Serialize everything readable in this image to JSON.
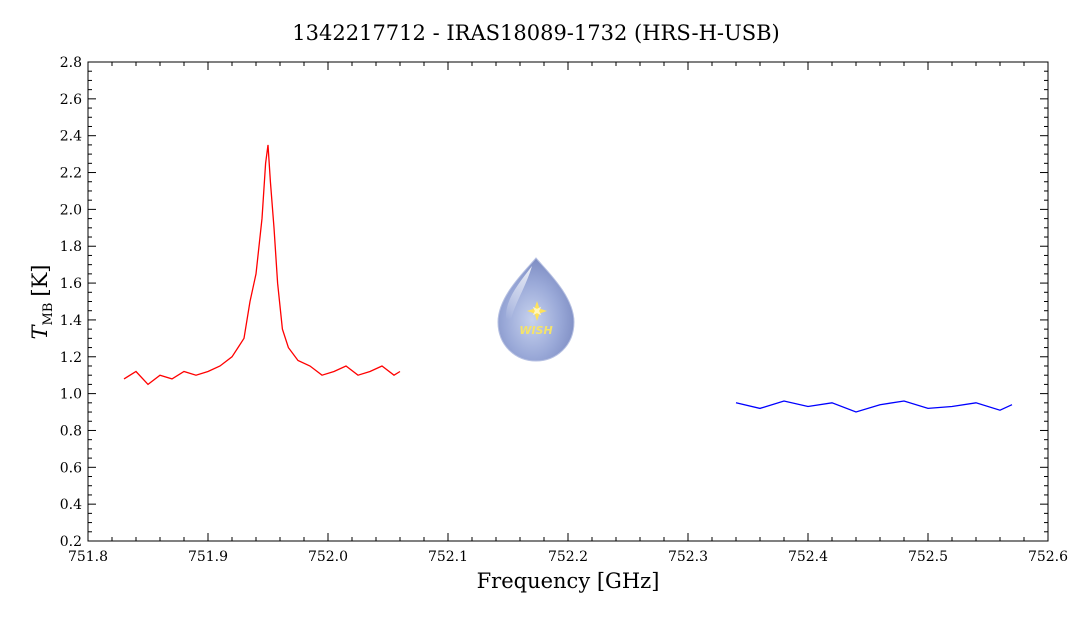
{
  "chart_data": {
    "type": "line",
    "title": "1342217712 - IRAS18089-1732 (HRS-H-USB)",
    "xlabel": "Frequency [GHz]",
    "ylabel": {
      "symbol": "T",
      "subscript": "MB",
      "unit": "[K]"
    },
    "xlim": [
      751.8,
      752.6
    ],
    "ylim": [
      0.2,
      2.8
    ],
    "xticks": [
      "751.8",
      "751.9",
      "752.0",
      "752.1",
      "752.2",
      "752.3",
      "752.4",
      "752.5",
      "752.6"
    ],
    "yticks": [
      "0.2",
      "0.4",
      "0.6",
      "0.8",
      "1.0",
      "1.2",
      "1.4",
      "1.6",
      "1.8",
      "2.0",
      "2.2",
      "2.4",
      "2.6",
      "2.8"
    ],
    "grid": false,
    "series": [
      {
        "color": "#ff0000",
        "x": [
          751.83,
          751.84,
          751.85,
          751.86,
          751.87,
          751.88,
          751.89,
          751.9,
          751.91,
          751.92,
          751.925,
          751.93,
          751.935,
          751.94,
          751.945,
          751.948,
          751.95,
          751.952,
          751.955,
          751.958,
          751.962,
          751.967,
          751.975,
          751.985,
          751.995,
          752.005,
          752.015,
          752.025,
          752.035,
          752.045,
          752.055,
          752.06
        ],
        "values": [
          1.08,
          1.12,
          1.05,
          1.1,
          1.08,
          1.12,
          1.1,
          1.12,
          1.15,
          1.2,
          1.25,
          1.3,
          1.5,
          1.65,
          1.95,
          2.25,
          2.35,
          2.15,
          1.9,
          1.6,
          1.35,
          1.25,
          1.18,
          1.15,
          1.1,
          1.12,
          1.15,
          1.1,
          1.12,
          1.15,
          1.1,
          1.12
        ]
      },
      {
        "color": "#0000ff",
        "x": [
          752.34,
          752.36,
          752.38,
          752.4,
          752.42,
          752.44,
          752.46,
          752.48,
          752.5,
          752.52,
          752.54,
          752.56,
          752.57
        ],
        "values": [
          0.95,
          0.92,
          0.96,
          0.93,
          0.95,
          0.9,
          0.94,
          0.96,
          0.92,
          0.93,
          0.95,
          0.91,
          0.94
        ]
      }
    ],
    "logo": "WISH",
    "icons": {
      "logo": "water-drop-star-icon"
    }
  }
}
